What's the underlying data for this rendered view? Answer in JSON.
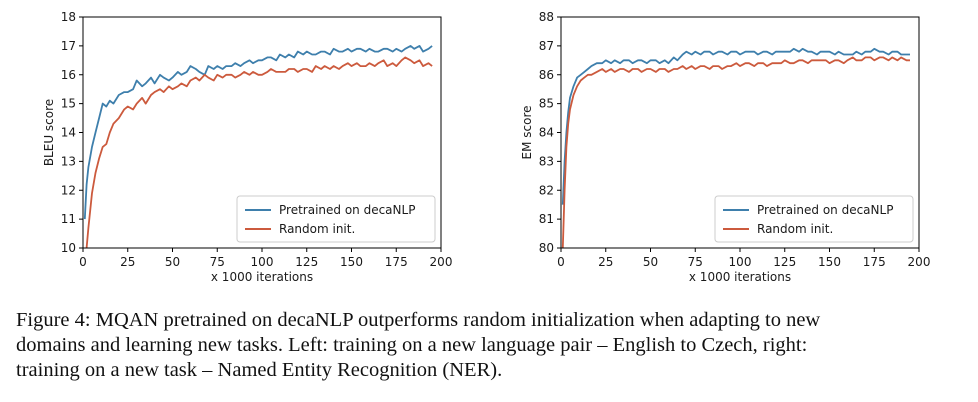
{
  "chart_data": [
    {
      "type": "line",
      "title": "",
      "xlabel": "x 1000 iterations",
      "ylabel": "BLEU score",
      "xlim": [
        0,
        200
      ],
      "ylim": [
        10,
        18
      ],
      "xticks": [
        "0",
        "25",
        "50",
        "75",
        "100",
        "125",
        "150",
        "175",
        "200"
      ],
      "yticks": [
        "10",
        "11",
        "12",
        "13",
        "14",
        "15",
        "16",
        "17",
        "18"
      ],
      "grid": false,
      "legend_position": "lower-right",
      "series": [
        {
          "name": "Pretrained on decaNLP",
          "color": "#3e7fac",
          "x": [
            1,
            2,
            3,
            5,
            7,
            9,
            11,
            13,
            15,
            17,
            20,
            23,
            25,
            28,
            30,
            33,
            35,
            38,
            40,
            43,
            45,
            48,
            50,
            53,
            55,
            58,
            60,
            63,
            65,
            68,
            70,
            73,
            75,
            78,
            80,
            83,
            85,
            88,
            90,
            93,
            95,
            98,
            100,
            103,
            105,
            108,
            110,
            113,
            115,
            118,
            120,
            123,
            125,
            128,
            130,
            133,
            135,
            138,
            140,
            143,
            145,
            148,
            150,
            153,
            155,
            158,
            160,
            163,
            165,
            168,
            170,
            173,
            175,
            178,
            180,
            183,
            185,
            188,
            190,
            193,
            195
          ],
          "y": [
            11.0,
            12.2,
            12.8,
            13.5,
            14.0,
            14.5,
            15.0,
            14.9,
            15.1,
            15.0,
            15.3,
            15.4,
            15.4,
            15.5,
            15.8,
            15.6,
            15.7,
            15.9,
            15.7,
            16.0,
            15.9,
            15.8,
            15.9,
            16.1,
            16.0,
            16.1,
            16.3,
            16.2,
            16.1,
            16.0,
            16.3,
            16.2,
            16.3,
            16.2,
            16.3,
            16.3,
            16.4,
            16.3,
            16.4,
            16.5,
            16.4,
            16.5,
            16.5,
            16.6,
            16.6,
            16.5,
            16.7,
            16.6,
            16.7,
            16.6,
            16.8,
            16.7,
            16.8,
            16.7,
            16.7,
            16.8,
            16.8,
            16.7,
            16.9,
            16.8,
            16.8,
            16.9,
            16.8,
            16.9,
            16.9,
            16.8,
            16.9,
            16.8,
            16.8,
            16.9,
            16.9,
            16.8,
            16.9,
            16.8,
            16.9,
            17.0,
            16.9,
            17.0,
            16.8,
            16.9,
            17.0
          ]
        },
        {
          "name": "Random init.",
          "color": "#cc5a3d",
          "x": [
            2,
            3,
            4,
            5,
            7,
            9,
            11,
            13,
            15,
            17,
            20,
            23,
            25,
            28,
            30,
            33,
            35,
            38,
            40,
            43,
            45,
            48,
            50,
            53,
            55,
            58,
            60,
            63,
            65,
            68,
            70,
            73,
            75,
            78,
            80,
            83,
            85,
            88,
            90,
            93,
            95,
            98,
            100,
            103,
            105,
            108,
            110,
            113,
            115,
            118,
            120,
            123,
            125,
            128,
            130,
            133,
            135,
            138,
            140,
            143,
            145,
            148,
            150,
            153,
            155,
            158,
            160,
            163,
            165,
            168,
            170,
            173,
            175,
            178,
            180,
            183,
            185,
            188,
            190,
            193,
            195
          ],
          "y": [
            10.0,
            10.7,
            11.3,
            11.9,
            12.6,
            13.1,
            13.5,
            13.6,
            14.0,
            14.3,
            14.5,
            14.8,
            14.9,
            14.8,
            15.0,
            15.2,
            15.0,
            15.3,
            15.4,
            15.5,
            15.4,
            15.6,
            15.5,
            15.6,
            15.7,
            15.6,
            15.8,
            15.9,
            15.8,
            16.0,
            15.9,
            15.8,
            16.0,
            15.9,
            16.0,
            16.0,
            15.9,
            16.0,
            16.1,
            16.0,
            16.1,
            16.0,
            16.0,
            16.1,
            16.2,
            16.1,
            16.1,
            16.1,
            16.2,
            16.2,
            16.1,
            16.2,
            16.2,
            16.1,
            16.3,
            16.2,
            16.3,
            16.2,
            16.3,
            16.2,
            16.3,
            16.4,
            16.3,
            16.4,
            16.3,
            16.3,
            16.4,
            16.3,
            16.4,
            16.5,
            16.3,
            16.4,
            16.3,
            16.5,
            16.6,
            16.5,
            16.4,
            16.5,
            16.3,
            16.4,
            16.3
          ]
        }
      ]
    },
    {
      "type": "line",
      "title": "",
      "xlabel": "x 1000 iterations",
      "ylabel": "EM score",
      "xlim": [
        0,
        200
      ],
      "ylim": [
        80,
        88
      ],
      "xticks": [
        "0",
        "25",
        "50",
        "75",
        "100",
        "125",
        "150",
        "175",
        "200"
      ],
      "yticks": [
        "80",
        "81",
        "82",
        "83",
        "84",
        "85",
        "86",
        "87",
        "88"
      ],
      "grid": false,
      "legend_position": "lower-right",
      "series": [
        {
          "name": "Pretrained on decaNLP",
          "color": "#3e7fac",
          "x": [
            1,
            2,
            3,
            4,
            5,
            7,
            9,
            11,
            13,
            15,
            17,
            20,
            23,
            25,
            28,
            30,
            33,
            35,
            38,
            40,
            43,
            45,
            48,
            50,
            53,
            55,
            58,
            60,
            63,
            65,
            68,
            70,
            73,
            75,
            78,
            80,
            83,
            85,
            88,
            90,
            93,
            95,
            98,
            100,
            103,
            105,
            108,
            110,
            113,
            115,
            118,
            120,
            123,
            125,
            128,
            130,
            133,
            135,
            138,
            140,
            143,
            145,
            148,
            150,
            153,
            155,
            158,
            160,
            163,
            165,
            168,
            170,
            173,
            175,
            178,
            180,
            183,
            185,
            188,
            190,
            193,
            195
          ],
          "y": [
            81.5,
            83.0,
            84.0,
            84.7,
            85.2,
            85.6,
            85.9,
            86.0,
            86.1,
            86.2,
            86.3,
            86.4,
            86.4,
            86.5,
            86.4,
            86.5,
            86.4,
            86.5,
            86.5,
            86.4,
            86.5,
            86.5,
            86.4,
            86.5,
            86.5,
            86.4,
            86.5,
            86.4,
            86.6,
            86.5,
            86.7,
            86.8,
            86.7,
            86.8,
            86.7,
            86.8,
            86.8,
            86.7,
            86.8,
            86.8,
            86.7,
            86.8,
            86.8,
            86.7,
            86.8,
            86.8,
            86.8,
            86.7,
            86.8,
            86.8,
            86.7,
            86.8,
            86.8,
            86.8,
            86.8,
            86.9,
            86.8,
            86.9,
            86.8,
            86.8,
            86.7,
            86.8,
            86.8,
            86.8,
            86.7,
            86.8,
            86.7,
            86.7,
            86.7,
            86.8,
            86.7,
            86.8,
            86.8,
            86.9,
            86.8,
            86.8,
            86.7,
            86.8,
            86.8,
            86.7,
            86.7,
            86.7
          ]
        },
        {
          "name": "Random init.",
          "color": "#cc5a3d",
          "x": [
            1,
            2,
            3,
            4,
            5,
            7,
            9,
            11,
            13,
            15,
            17,
            20,
            23,
            25,
            28,
            30,
            33,
            35,
            38,
            40,
            43,
            45,
            48,
            50,
            53,
            55,
            58,
            60,
            63,
            65,
            68,
            70,
            73,
            75,
            78,
            80,
            83,
            85,
            88,
            90,
            93,
            95,
            98,
            100,
            103,
            105,
            108,
            110,
            113,
            115,
            118,
            120,
            123,
            125,
            128,
            130,
            133,
            135,
            138,
            140,
            143,
            145,
            148,
            150,
            153,
            155,
            158,
            160,
            163,
            165,
            168,
            170,
            173,
            175,
            178,
            180,
            183,
            185,
            188,
            190,
            193,
            195
          ],
          "y": [
            80.0,
            82.0,
            83.5,
            84.3,
            84.8,
            85.3,
            85.6,
            85.8,
            85.9,
            86.0,
            86.0,
            86.1,
            86.2,
            86.1,
            86.2,
            86.1,
            86.2,
            86.2,
            86.1,
            86.2,
            86.2,
            86.1,
            86.2,
            86.2,
            86.1,
            86.2,
            86.2,
            86.1,
            86.2,
            86.2,
            86.3,
            86.2,
            86.3,
            86.2,
            86.3,
            86.3,
            86.2,
            86.3,
            86.3,
            86.2,
            86.3,
            86.3,
            86.4,
            86.3,
            86.4,
            86.4,
            86.3,
            86.4,
            86.4,
            86.3,
            86.4,
            86.4,
            86.4,
            86.5,
            86.4,
            86.4,
            86.5,
            86.5,
            86.4,
            86.5,
            86.5,
            86.5,
            86.5,
            86.4,
            86.5,
            86.5,
            86.4,
            86.5,
            86.6,
            86.5,
            86.5,
            86.6,
            86.6,
            86.5,
            86.6,
            86.6,
            86.5,
            86.6,
            86.5,
            86.6,
            86.5,
            86.5
          ]
        }
      ]
    }
  ],
  "caption": {
    "lines": [
      "Figure 4: MQAN pretrained on decaNLP outperforms random initialization when adapting to new",
      "domains and learning new tasks. Left: training on a new language pair – English to Czech, right:",
      "training on a new task – Named Entity Recognition (NER)."
    ]
  }
}
